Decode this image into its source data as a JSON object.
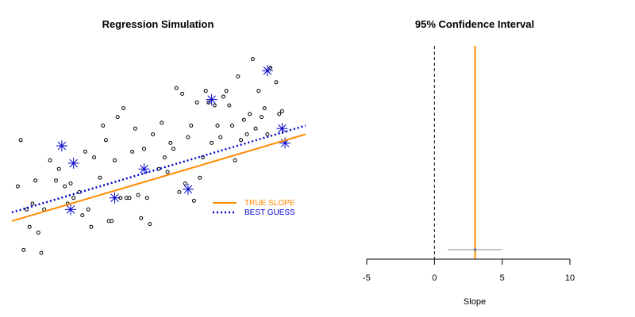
{
  "chart_data": [
    {
      "type": "scatter",
      "title": "Regression Simulation",
      "xlabel": "",
      "ylabel": "",
      "axes_visible": false,
      "xlim": [
        0,
        1
      ],
      "ylim": [
        -0.5,
        3.2
      ],
      "true_line": {
        "intercept": 0.2,
        "slope": 1.5,
        "color": "#ff8c00",
        "style": "solid"
      },
      "fitted_line": {
        "intercept": 0.35,
        "slope": 1.5,
        "color": "#0000cc",
        "style": "dotted"
      },
      "legend": {
        "position": "bottom-right",
        "entries": [
          {
            "label": "TRUE SLOPE",
            "color": "#ff8c00",
            "style": "solid"
          },
          {
            "label": "BEST GUESS",
            "color": "#0000cc",
            "style": "dotted"
          }
        ]
      },
      "points": [
        [
          0.02,
          0.8
        ],
        [
          0.03,
          1.6
        ],
        [
          0.04,
          -0.3
        ],
        [
          0.05,
          0.4
        ],
        [
          0.06,
          0.1
        ],
        [
          0.07,
          0.5
        ],
        [
          0.08,
          0.9
        ],
        [
          0.09,
          0.0
        ],
        [
          0.1,
          -0.35
        ],
        [
          0.11,
          0.4
        ],
        [
          0.13,
          1.25
        ],
        [
          0.15,
          0.9
        ],
        [
          0.16,
          1.1
        ],
        [
          0.18,
          0.8
        ],
        [
          0.19,
          0.5
        ],
        [
          0.2,
          0.85
        ],
        [
          0.21,
          0.6
        ],
        [
          0.23,
          0.7
        ],
        [
          0.24,
          0.3
        ],
        [
          0.25,
          1.4
        ],
        [
          0.26,
          0.4
        ],
        [
          0.27,
          0.1
        ],
        [
          0.28,
          1.3
        ],
        [
          0.3,
          0.95
        ],
        [
          0.31,
          1.85
        ],
        [
          0.32,
          1.6
        ],
        [
          0.33,
          0.2
        ],
        [
          0.34,
          0.2
        ],
        [
          0.35,
          1.25
        ],
        [
          0.36,
          2.0
        ],
        [
          0.37,
          0.6
        ],
        [
          0.38,
          2.15
        ],
        [
          0.39,
          0.6
        ],
        [
          0.4,
          0.6
        ],
        [
          0.41,
          1.4
        ],
        [
          0.42,
          1.8
        ],
        [
          0.43,
          0.65
        ],
        [
          0.44,
          0.25
        ],
        [
          0.45,
          1.45
        ],
        [
          0.46,
          0.6
        ],
        [
          0.47,
          0.15
        ],
        [
          0.48,
          1.7
        ],
        [
          0.5,
          1.1
        ],
        [
          0.51,
          1.9
        ],
        [
          0.52,
          1.3
        ],
        [
          0.53,
          1.05
        ],
        [
          0.54,
          1.55
        ],
        [
          0.55,
          1.45
        ],
        [
          0.56,
          2.5
        ],
        [
          0.57,
          0.7
        ],
        [
          0.58,
          2.4
        ],
        [
          0.59,
          0.85
        ],
        [
          0.6,
          1.65
        ],
        [
          0.61,
          1.85
        ],
        [
          0.62,
          0.55
        ],
        [
          0.63,
          2.25
        ],
        [
          0.64,
          0.95
        ],
        [
          0.65,
          1.3
        ],
        [
          0.66,
          2.45
        ],
        [
          0.67,
          2.25
        ],
        [
          0.68,
          1.55
        ],
        [
          0.69,
          2.2
        ],
        [
          0.7,
          1.85
        ],
        [
          0.71,
          1.65
        ],
        [
          0.72,
          2.35
        ],
        [
          0.73,
          2.45
        ],
        [
          0.74,
          2.2
        ],
        [
          0.75,
          1.85
        ],
        [
          0.76,
          1.25
        ],
        [
          0.77,
          2.7
        ],
        [
          0.78,
          1.6
        ],
        [
          0.79,
          1.95
        ],
        [
          0.8,
          1.7
        ],
        [
          0.81,
          2.05
        ],
        [
          0.82,
          3.0
        ],
        [
          0.83,
          1.8
        ],
        [
          0.84,
          2.45
        ],
        [
          0.85,
          2.0
        ],
        [
          0.86,
          2.15
        ],
        [
          0.87,
          1.7
        ],
        [
          0.88,
          2.85
        ],
        [
          0.9,
          2.6
        ],
        [
          0.91,
          2.05
        ],
        [
          0.92,
          2.1
        ]
      ],
      "highlight_points": [
        [
          0.17,
          1.5
        ],
        [
          0.2,
          0.4
        ],
        [
          0.21,
          1.2
        ],
        [
          0.35,
          0.6
        ],
        [
          0.45,
          1.1
        ],
        [
          0.6,
          0.75
        ],
        [
          0.68,
          2.3
        ],
        [
          0.87,
          2.8
        ],
        [
          0.92,
          1.8
        ],
        [
          0.93,
          1.55
        ]
      ]
    },
    {
      "type": "line",
      "title": "95% Confidence Interval",
      "xlabel": "Slope",
      "ylabel": "",
      "xlim": [
        -5,
        10
      ],
      "xticks": [
        -5,
        0,
        5,
        10
      ],
      "true_slope": 3,
      "estimate": 3,
      "ci": [
        1,
        5
      ],
      "reference_x": 0,
      "colors": {
        "true_slope": "#ff8c00",
        "ci": "#888888",
        "reference": "#000000"
      }
    }
  ]
}
